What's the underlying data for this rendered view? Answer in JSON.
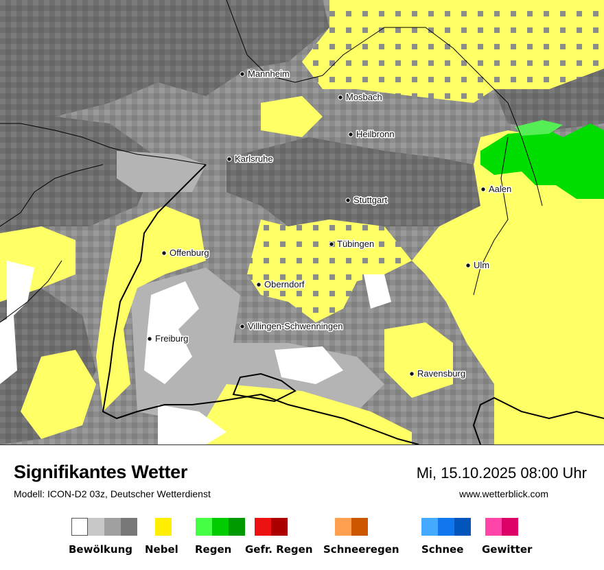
{
  "header": {
    "title": "Signifikantes Wetter",
    "model": "Modell: ICON-D2 03z, Deutscher Wetterdienst",
    "datetime": "Mi, 15.10.2025 08:00 Uhr",
    "website": "www.wetterblick.com"
  },
  "map": {
    "cities": [
      {
        "name": "Mannheim"
      },
      {
        "name": "Mosbach"
      },
      {
        "name": "Heilbronn"
      },
      {
        "name": "Karlsruhe"
      },
      {
        "name": "Aalen"
      },
      {
        "name": "Stuttgart"
      },
      {
        "name": "Tübingen"
      },
      {
        "name": "Offenburg"
      },
      {
        "name": "Ulm"
      },
      {
        "name": "Oberndorf"
      },
      {
        "name": "Villingen-Schwenningen"
      },
      {
        "name": "Freiburg"
      },
      {
        "name": "Ravensburg"
      }
    ],
    "colors": {
      "fog": "#ffff66",
      "cloud_dark": "#6e6e6e",
      "cloud_mid": "#8c8c8c",
      "cloud_light": "#b4b4b4",
      "clear": "#ffffff",
      "rain_light": "#55ee55",
      "rain": "#00dd00"
    }
  },
  "legend": [
    {
      "label": "Bewölkung",
      "icon": "cloud-cover-swatches",
      "colors": [
        "#ffffff",
        "#c8c8c8",
        "#a0a0a0",
        "#787878"
      ]
    },
    {
      "label": "Nebel",
      "icon": "fog-swatch",
      "colors": [
        "#ffee00"
      ]
    },
    {
      "label": "Regen",
      "icon": "rain-swatches",
      "colors": [
        "#44ff44",
        "#00cc00",
        "#009900"
      ]
    },
    {
      "label": "Gefr. Regen",
      "icon": "freezing-rain-swatches",
      "colors": [
        "#ee1111",
        "#aa0000"
      ]
    },
    {
      "label": "Schneeregen",
      "icon": "sleet-swatches",
      "colors": [
        "#ffa050",
        "#cc5500"
      ]
    },
    {
      "label": "Schnee",
      "icon": "snow-swatches",
      "colors": [
        "#44aaff",
        "#1177ee",
        "#0055bb"
      ]
    },
    {
      "label": "Gewitter",
      "icon": "thunderstorm-swatches",
      "colors": [
        "#ff44aa",
        "#dd0066"
      ]
    }
  ]
}
